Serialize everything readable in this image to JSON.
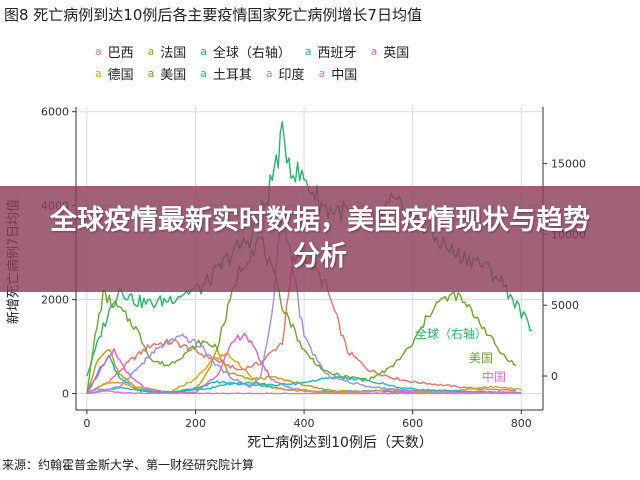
{
  "title": "图8 死亡病例到达10例后各主要疫情国家死亡病例增长7日均值",
  "banner": "全球疫情最新实时数据，美国疫情现状与趋势分析",
  "xlabel": "死亡病例达到10例后（天数）",
  "ylabel": "新增死亡病例7日均值",
  "source": "来源：约翰霍普金斯大学、第一财经研究院计算",
  "legend_key": "a",
  "legend_rows": [
    [
      {
        "name": "巴西",
        "color": "#e8746b"
      },
      {
        "name": "法国",
        "color": "#b8a00c"
      },
      {
        "name": "全球（右轴）",
        "color": "#2db36b"
      },
      {
        "name": "西班牙",
        "color": "#1fb0c9"
      },
      {
        "name": "英国",
        "color": "#de5fd5"
      }
    ],
    [
      {
        "name": "德国",
        "color": "#d9a21b"
      },
      {
        "name": "美国",
        "color": "#6ea531"
      },
      {
        "name": "土耳其",
        "color": "#21b7b7"
      },
      {
        "name": "印度",
        "color": "#9b8fe6"
      },
      {
        "name": "中国",
        "color": "#e46fd0"
      }
    ]
  ],
  "annotations": [
    {
      "text": "全球（右轴）",
      "color": "#2db36b"
    },
    {
      "text": "美国",
      "color": "#6ea531"
    },
    {
      "text": "中国",
      "color": "#e46fd0"
    }
  ],
  "chart_data": {
    "type": "line",
    "title": "图8 死亡病例到达10例后各主要疫情国家死亡病例增长7日均值",
    "xlabel": "死亡病例达到10例后（天数）",
    "ylabel": "新增死亡病例7日均值",
    "y2label": "",
    "xlim": [
      -20,
      840
    ],
    "ylim": [
      -350,
      6100
    ],
    "y2lim": [
      -2400,
      19000
    ],
    "xticks": [
      0,
      200,
      400,
      600,
      800
    ],
    "yticks": [
      0,
      2000,
      4000,
      6000
    ],
    "y2ticks": [
      0,
      5000,
      10000,
      15000
    ],
    "grid": true,
    "legend_position": "top",
    "series": [
      {
        "name": "巴西",
        "color": "#e8746b",
        "axis": "left",
        "x": [
          0,
          40,
          80,
          120,
          160,
          200,
          240,
          280,
          320,
          360,
          380,
          400,
          440,
          480,
          520,
          560,
          600,
          640,
          680,
          720,
          760,
          790
        ],
        "y": [
          0,
          250,
          700,
          1050,
          1100,
          900,
          700,
          500,
          650,
          1100,
          2800,
          3000,
          2300,
          900,
          500,
          350,
          250,
          200,
          150,
          100,
          80,
          60
        ]
      },
      {
        "name": "法国",
        "color": "#b8a00c",
        "axis": "left",
        "x": [
          0,
          20,
          40,
          60,
          90,
          120,
          160,
          200,
          220,
          240,
          260,
          300,
          340,
          380,
          420,
          460,
          500,
          560,
          640,
          720,
          790
        ],
        "y": [
          0,
          700,
          950,
          400,
          150,
          50,
          30,
          100,
          400,
          900,
          450,
          300,
          350,
          250,
          120,
          60,
          50,
          80,
          60,
          40,
          30
        ]
      },
      {
        "name": "全球（右轴）",
        "color": "#2db36b",
        "axis": "right",
        "x": [
          0,
          30,
          60,
          90,
          120,
          150,
          180,
          210,
          240,
          270,
          300,
          330,
          360,
          380,
          400,
          440,
          480,
          520,
          560,
          600,
          640,
          680,
          720,
          760,
          800,
          820
        ],
        "y": [
          0,
          3500,
          6200,
          5300,
          5100,
          5400,
          5900,
          6200,
          7400,
          8800,
          9700,
          12300,
          16800,
          14500,
          13900,
          11800,
          11600,
          10400,
          12200,
          11300,
          9800,
          8600,
          8100,
          6900,
          4500,
          3200
        ]
      },
      {
        "name": "西班牙",
        "color": "#1fb0c9",
        "axis": "left",
        "x": [
          0,
          20,
          40,
          60,
          90,
          120,
          160,
          200,
          240,
          280,
          320,
          360,
          400,
          460,
          520,
          600,
          680,
          760,
          800
        ],
        "y": [
          0,
          450,
          800,
          350,
          80,
          20,
          30,
          120,
          250,
          200,
          180,
          100,
          50,
          40,
          60,
          30,
          40,
          20,
          10
        ]
      },
      {
        "name": "英国",
        "color": "#de5fd5",
        "axis": "left",
        "x": [
          0,
          25,
          50,
          80,
          110,
          150,
          200,
          240,
          270,
          290,
          310,
          340,
          380,
          440,
          500,
          560,
          620,
          680,
          720,
          760,
          800
        ],
        "y": [
          0,
          500,
          900,
          350,
          100,
          30,
          20,
          400,
          1100,
          1300,
          900,
          300,
          100,
          20,
          10,
          10,
          10,
          10,
          10,
          10,
          10
        ]
      },
      {
        "name": "德国",
        "color": "#d9a21b",
        "axis": "left",
        "x": [
          0,
          30,
          60,
          100,
          150,
          200,
          230,
          260,
          290,
          320,
          350,
          400,
          450,
          500,
          560,
          600,
          640,
          680,
          720,
          760,
          800
        ],
        "y": [
          0,
          200,
          230,
          80,
          20,
          300,
          700,
          850,
          500,
          200,
          100,
          50,
          30,
          40,
          80,
          40,
          20,
          60,
          120,
          150,
          80
        ]
      },
      {
        "name": "美国",
        "color": "#6ea531",
        "axis": "left",
        "x": [
          0,
          15,
          30,
          60,
          90,
          120,
          150,
          180,
          210,
          240,
          260,
          280,
          300,
          320,
          340,
          360,
          400,
          440,
          480,
          520,
          560,
          600,
          640,
          680,
          720,
          760,
          790
        ],
        "y": [
          0,
          1200,
          2100,
          1800,
          1400,
          700,
          600,
          850,
          1100,
          1000,
          1800,
          2600,
          3000,
          3300,
          2600,
          1900,
          900,
          450,
          350,
          300,
          550,
          1050,
          1900,
          2100,
          1600,
          900,
          600
        ]
      },
      {
        "name": "土耳其",
        "color": "#21b7b7",
        "axis": "left",
        "x": [
          0,
          30,
          60,
          100,
          140,
          180,
          220,
          260,
          300,
          340,
          380,
          420,
          460,
          500,
          540,
          580,
          620,
          660,
          700,
          740,
          780,
          800
        ],
        "y": [
          0,
          80,
          120,
          60,
          30,
          50,
          100,
          200,
          250,
          180,
          200,
          280,
          350,
          300,
          220,
          120,
          80,
          60,
          40,
          30,
          20,
          20
        ]
      },
      {
        "name": "印度",
        "color": "#9b8fe6",
        "axis": "left",
        "x": [
          0,
          30,
          60,
          90,
          120,
          150,
          180,
          210,
          240,
          260,
          280,
          300,
          320,
          340,
          360,
          400,
          440,
          480,
          520,
          560,
          600,
          640,
          680,
          720,
          760,
          800
        ],
        "y": [
          0,
          50,
          150,
          500,
          850,
          1100,
          1200,
          1000,
          600,
          400,
          250,
          150,
          350,
          1600,
          4000,
          1200,
          400,
          250,
          150,
          100,
          60,
          40,
          30,
          20,
          20,
          10
        ]
      },
      {
        "name": "中国",
        "color": "#e46fd0",
        "axis": "left",
        "x": [
          0,
          10,
          20,
          40,
          60,
          100,
          200,
          300,
          400,
          500,
          600,
          700,
          750,
          800
        ],
        "y": [
          0,
          60,
          100,
          50,
          20,
          5,
          0,
          0,
          0,
          0,
          0,
          0,
          5,
          2
        ]
      }
    ]
  }
}
